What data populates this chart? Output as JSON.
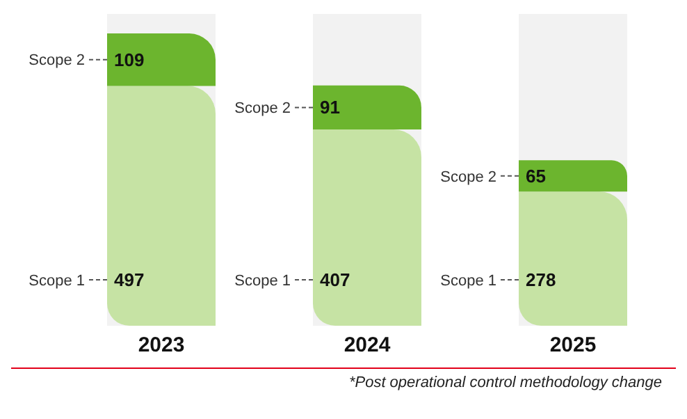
{
  "chart_data": {
    "type": "bar",
    "stacked": true,
    "categories": [
      "2023",
      "2024",
      "2025"
    ],
    "series": [
      {
        "name": "Scope 1",
        "color": "#c6e3a4",
        "values": [
          497,
          407,
          278
        ]
      },
      {
        "name": "Scope 2",
        "color": "#6cb52e",
        "values": [
          109,
          91,
          65
        ]
      }
    ],
    "data_labels": true,
    "annotations": [
      "*Post operational control methodology change"
    ]
  }
}
